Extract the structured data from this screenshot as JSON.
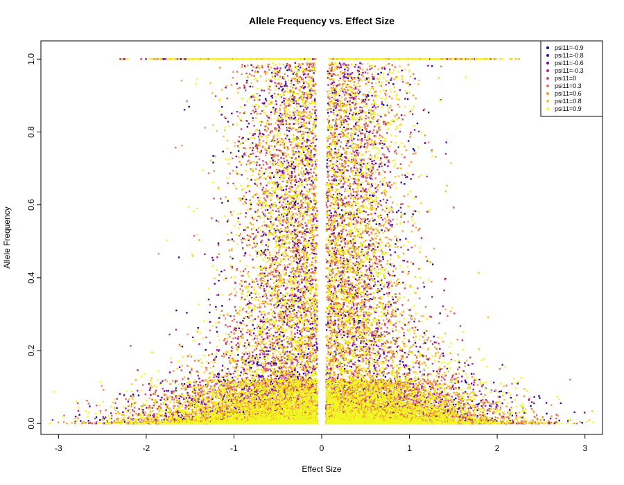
{
  "chart_data": {
    "type": "scatter",
    "title": "Allele Frequency vs. Effect Size",
    "xlabel": "Effect Size",
    "ylabel": "Allele Frequency",
    "xlim": [
      -3.2,
      3.2
    ],
    "ylim": [
      -0.03,
      1.05
    ],
    "x_ticks": [
      -3,
      -2,
      -1,
      0,
      1,
      2,
      3
    ],
    "x_tick_labels": [
      "-3",
      "-2",
      "-1",
      "0",
      "1",
      "2",
      "3"
    ],
    "y_ticks": [
      0.0,
      0.2,
      0.4,
      0.6,
      0.8,
      1.0
    ],
    "y_tick_labels": [
      "0.0",
      "0.2",
      "0.4",
      "0.6",
      "0.8",
      "1.0"
    ],
    "grid": false,
    "legend_position": "top-right",
    "series": [
      {
        "name": "psi11=-0.9",
        "color": "#0D0887"
      },
      {
        "name": "psi11=-0.8",
        "color": "#4C02A1"
      },
      {
        "name": "psi11=-0.6",
        "color": "#7E03A8"
      },
      {
        "name": "psi11=-0.3",
        "color": "#A92395"
      },
      {
        "name": "psi11=0",
        "color": "#CC4778"
      },
      {
        "name": "psi11=0.3",
        "color": "#E56B5D"
      },
      {
        "name": "psi11=0.6",
        "color": "#F89441"
      },
      {
        "name": "psi11=0.8",
        "color": "#FDC328"
      },
      {
        "name": "psi11=0.9",
        "color": "#F0F921"
      }
    ],
    "distribution": {
      "description_points": "dense cloud of points symmetric about effect size 0 with a narrow empty gap near 0; frequency concentrated near 0, sparse up to 1.0, and a row of fixed alleles at frequency 1.0",
      "x_range": [
        -3.1,
        3.1
      ],
      "approx_point_count": 30000
    }
  }
}
